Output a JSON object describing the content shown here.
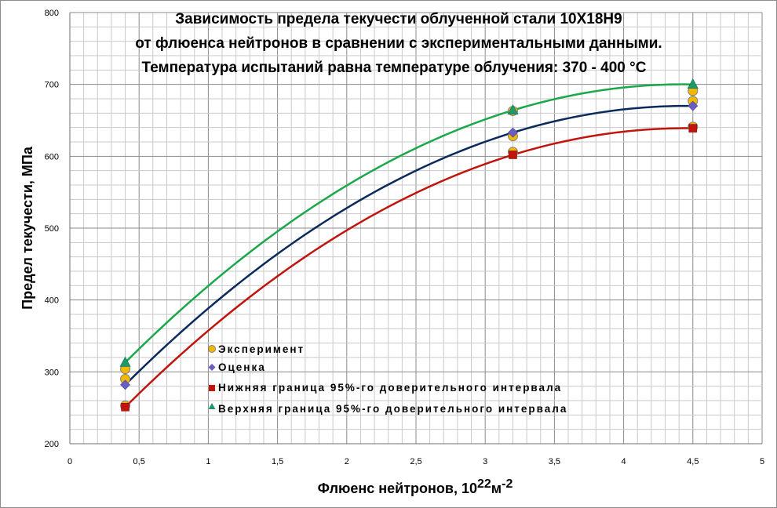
{
  "chart_data": {
    "type": "scatter",
    "title_lines": [
      "Зависимость предела текучести облученной стали 10Х18Н9",
      "от флюенса нейтронов в сравнении с экспериментальными данными.",
      "Температура испытаний равна температуре облучения: 370 - 400 °С"
    ],
    "xlabel": {
      "main": "Флюенс нейтронов, 10",
      "sup1": "22",
      "mid": "м",
      "sup2": "-2"
    },
    "ylabel": "Предел  текучести, МПа",
    "xlim": [
      0,
      5
    ],
    "ylim": [
      200,
      800
    ],
    "x_ticks": [
      {
        "v": 0,
        "label": "0"
      },
      {
        "v": 0.5,
        "label": "0,5"
      },
      {
        "v": 1,
        "label": "1"
      },
      {
        "v": 1.5,
        "label": "1,5"
      },
      {
        "v": 2,
        "label": "2"
      },
      {
        "v": 2.5,
        "label": "2,5"
      },
      {
        "v": 3,
        "label": "3"
      },
      {
        "v": 3.5,
        "label": "3,5"
      },
      {
        "v": 4,
        "label": "4"
      },
      {
        "v": 4.5,
        "label": "4,5"
      },
      {
        "v": 5,
        "label": "5"
      }
    ],
    "y_ticks": [
      {
        "v": 200,
        "label": "200"
      },
      {
        "v": 300,
        "label": "300"
      },
      {
        "v": 400,
        "label": "400"
      },
      {
        "v": 500,
        "label": "500"
      },
      {
        "v": 600,
        "label": "600"
      },
      {
        "v": 700,
        "label": "700"
      },
      {
        "v": 800,
        "label": "800"
      }
    ],
    "grid": true,
    "legend_position": "lower-left inside plot",
    "series": [
      {
        "name": "Эксперимент",
        "marker": "circle",
        "color": "#f2b800",
        "stroke": "#7f7f7f",
        "points": [
          [
            0.4,
            253
          ],
          [
            0.4,
            290
          ],
          [
            0.4,
            304
          ],
          [
            3.2,
            606
          ],
          [
            3.2,
            628
          ],
          [
            3.2,
            663
          ],
          [
            4.5,
            641
          ],
          [
            4.5,
            677
          ],
          [
            4.5,
            691
          ]
        ]
      },
      {
        "name": "Оценка",
        "marker": "diamond",
        "color": "#6a5fc1",
        "points": [
          [
            0.4,
            282
          ],
          [
            3.2,
            633
          ],
          [
            4.5,
            670
          ]
        ],
        "curve_color": "#0a2a5c"
      },
      {
        "name": "Нижняя граница 95%-го доверительного интервала",
        "marker": "square",
        "color": "#c0140c",
        "points": [
          [
            0.4,
            251
          ],
          [
            3.2,
            602
          ],
          [
            4.5,
            639
          ]
        ],
        "curve_color": "#c0140c"
      },
      {
        "name": "Верхняя граница 95%-го доверительного интервала",
        "marker": "triangle",
        "color": "#1e9a6a",
        "points": [
          [
            0.4,
            313
          ],
          [
            3.2,
            664
          ],
          [
            4.5,
            700
          ]
        ],
        "curve_color": "#1aa84a"
      }
    ]
  }
}
